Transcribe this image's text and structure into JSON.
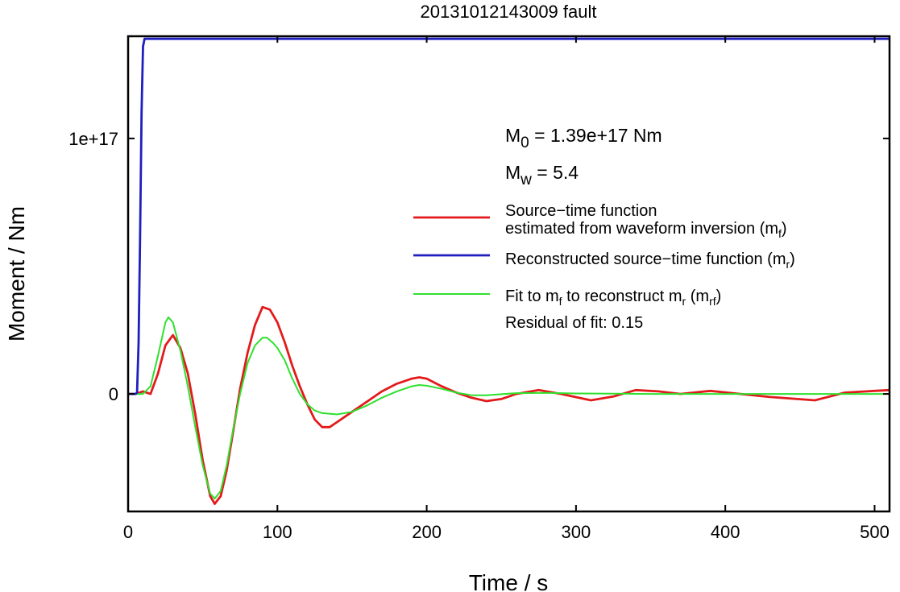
{
  "chart_data": {
    "type": "line",
    "title": "20131012143009 fault",
    "xlabel": "Time / s",
    "ylabel": "Moment / Nm",
    "xlim": [
      0,
      510
    ],
    "ylim": [
      -4.6e+16,
      1.4e+17
    ],
    "x_ticks": [
      0,
      100,
      200,
      300,
      400,
      500
    ],
    "x_tick_labels": [
      "0",
      "100",
      "200",
      "300",
      "400",
      "500"
    ],
    "y_ticks": [
      0,
      1e+17
    ],
    "y_tick_labels": [
      "0",
      "1e+17"
    ],
    "grid": false,
    "legend_position": "right",
    "annotations": {
      "m0_main": "M",
      "m0_sub": "0",
      "m0_value": " = 1.39e+17 Nm",
      "mw_main": "M",
      "mw_sub": "w",
      "mw_value": " = 5.4",
      "residual": "Residual of fit: 0.15"
    },
    "series": [
      {
        "key": "red",
        "color": "#e31a1c",
        "legend_lines": [
          [
            {
              "t": "Source−time function"
            }
          ],
          [
            {
              "t": "estimated from waveform inversion (m"
            },
            {
              "t": "f",
              "sub": true
            },
            {
              "t": ")"
            }
          ]
        ],
        "x": [
          0,
          5,
          10,
          15,
          20,
          25,
          30,
          35,
          40,
          45,
          50,
          55,
          58,
          62,
          66,
          70,
          75,
          80,
          85,
          90,
          95,
          100,
          105,
          110,
          115,
          120,
          125,
          130,
          135,
          140,
          150,
          160,
          170,
          180,
          190,
          195,
          200,
          210,
          220,
          230,
          240,
          250,
          260,
          275,
          290,
          310,
          325,
          340,
          355,
          370,
          390,
          410,
          430,
          460,
          480,
          500,
          510
        ],
        "y": [
          0,
          0,
          1000000000000000.0,
          0,
          8000000000000000.0,
          1.9e+16,
          2.3e+16,
          1.8e+16,
          8000000000000000.0,
          -8000000000000000.0,
          -2.6e+16,
          -4e+16,
          -4.3e+16,
          -4e+16,
          -3e+16,
          -1.6e+16,
          2000000000000000.0,
          1.6e+16,
          2.7e+16,
          3.4e+16,
          3.3e+16,
          2.8e+16,
          2e+16,
          1.1e+16,
          3000000000000000.0,
          -4000000000000000.0,
          -1e+16,
          -1.3e+16,
          -1.3e+16,
          -1.1e+16,
          -7000000000000000.0,
          -3000000000000000.0,
          1000000000000000.0,
          4000000000000000.0,
          6000000000000000.0,
          6500000000000000.0,
          6000000000000000.0,
          3000000000000000.0,
          500000000000000.0,
          -1500000000000000.0,
          -2800000000000000.0,
          -2000000000000000.0,
          0,
          1500000000000000.0,
          0,
          -2500000000000000.0,
          -1000000000000000.0,
          1500000000000000.0,
          1000000000000000.0,
          0,
          1200000000000000.0,
          0,
          -1200000000000000.0,
          -2500000000000000.0,
          500000000000000.0,
          1200000000000000.0,
          1500000000000000.0
        ]
      },
      {
        "key": "blue",
        "color": "#1f1fbf",
        "legend_lines": [
          [
            {
              "t": "Reconstructed source−time function (m"
            },
            {
              "t": "r",
              "sub": true
            },
            {
              "t": ")"
            }
          ]
        ],
        "x": [
          0,
          5,
          6,
          7,
          8,
          9,
          10,
          11,
          510
        ],
        "y": [
          0,
          0,
          500000000000000.0,
          2e+16,
          6e+16,
          1.1e+17,
          1.36e+17,
          1.39e+17,
          1.39e+17
        ]
      },
      {
        "key": "green",
        "color": "#2ee02e",
        "legend_lines": [
          [
            {
              "t": "Fit to m"
            },
            {
              "t": "f",
              "sub": true
            },
            {
              "t": " to reconstruct m"
            },
            {
              "t": "r",
              "sub": true
            },
            {
              "t": " (m"
            },
            {
              "t": "rf",
              "sub": true
            },
            {
              "t": ")"
            }
          ]
        ],
        "x": [
          0,
          5,
          10,
          15,
          20,
          25,
          27,
          30,
          35,
          40,
          45,
          50,
          55,
          58,
          62,
          66,
          70,
          75,
          80,
          85,
          90,
          93,
          97,
          100,
          105,
          110,
          115,
          120,
          125,
          130,
          140,
          150,
          160,
          170,
          180,
          190,
          195,
          200,
          210,
          220,
          230,
          240,
          260,
          280,
          300,
          350,
          400,
          450,
          510
        ],
        "y": [
          0,
          0,
          0,
          3000000000000000.0,
          1.5e+16,
          2.8e+16,
          3e+16,
          2.8e+16,
          1.7e+16,
          3000000000000000.0,
          -1.3e+16,
          -2.8e+16,
          -3.9e+16,
          -4.1e+16,
          -3.8e+16,
          -2.8e+16,
          -1.5e+16,
          0,
          1.2e+16,
          1.9e+16,
          2.2e+16,
          2.2e+16,
          2e+16,
          1.8e+16,
          1.3e+16,
          6000000000000000.0,
          0,
          -4000000000000000.0,
          -6500000000000000.0,
          -7500000000000000.0,
          -8000000000000000.0,
          -7000000000000000.0,
          -4500000000000000.0,
          -1500000000000000.0,
          1000000000000000.0,
          3000000000000000.0,
          3500000000000000.0,
          3200000000000000.0,
          2000000000000000.0,
          500000000000000.0,
          -500000000000000.0,
          -500000000000000.0,
          300000000000000.0,
          400000000000000.0,
          200000000000000.0,
          0,
          0,
          0,
          0
        ]
      }
    ]
  }
}
